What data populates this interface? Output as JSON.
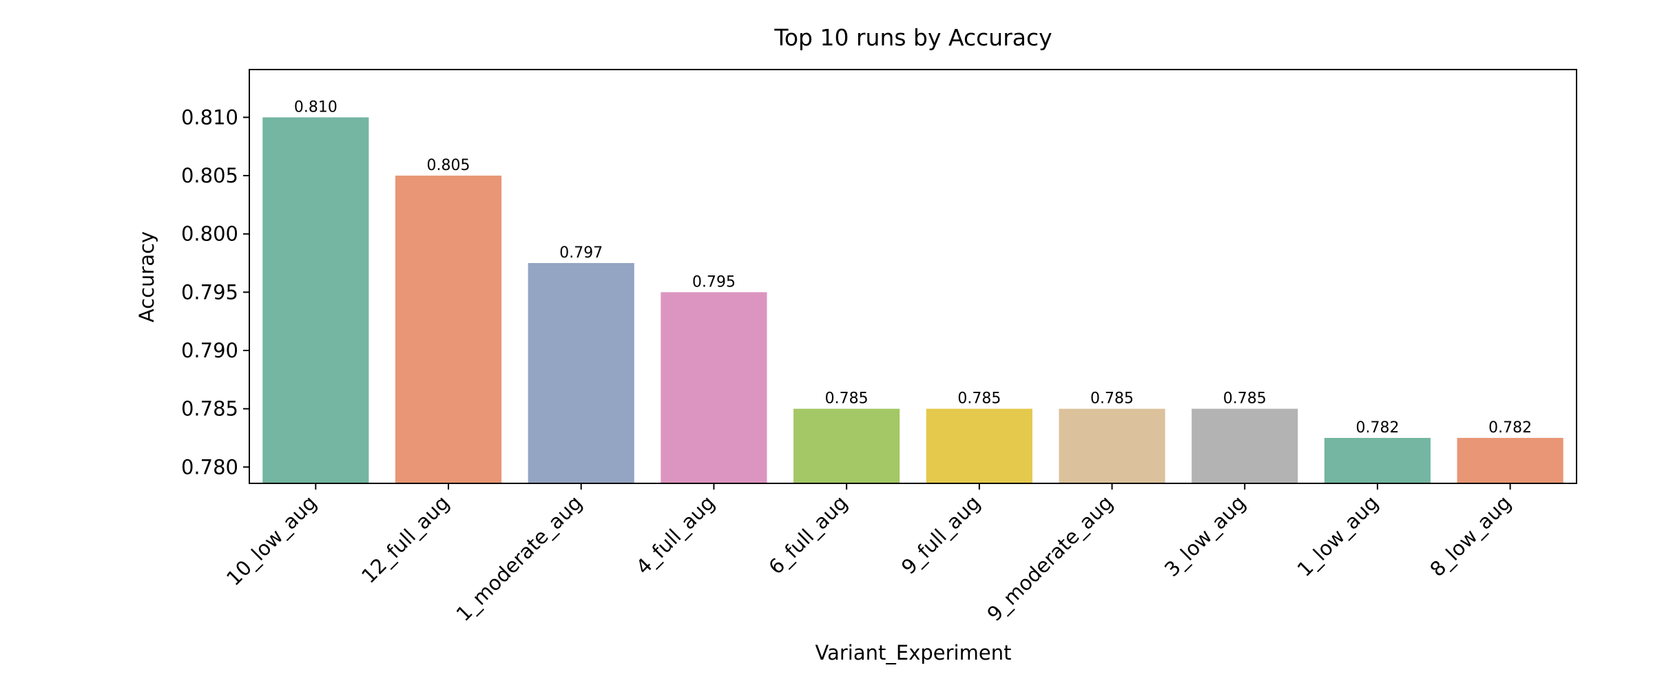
{
  "chart_data": {
    "type": "bar",
    "title": "Top 10 runs by Accuracy",
    "xlabel": "Variant_Experiment",
    "ylabel": "Accuracy",
    "categories": [
      "10_low_aug",
      "12_full_aug",
      "1_moderate_aug",
      "4_full_aug",
      "6_full_aug",
      "9_full_aug",
      "9_moderate_aug",
      "3_low_aug",
      "1_low_aug",
      "8_low_aug"
    ],
    "values": [
      0.81,
      0.805,
      0.7975,
      0.795,
      0.785,
      0.785,
      0.785,
      0.785,
      0.7825,
      0.7825
    ],
    "value_labels": [
      "0.810",
      "0.805",
      "0.797",
      "0.795",
      "0.785",
      "0.785",
      "0.785",
      "0.785",
      "0.782",
      "0.782"
    ],
    "colors": [
      "#74b6a1",
      "#e89675",
      "#94a4c3",
      "#dc95c0",
      "#a3c865",
      "#e4c94d",
      "#dbc29c",
      "#b3b3b3",
      "#74b6a1",
      "#e89675"
    ],
    "ylim": [
      0.7786,
      0.8141
    ],
    "yticks": [
      0.78,
      0.785,
      0.79,
      0.795,
      0.8,
      0.805,
      0.81
    ],
    "ytick_labels": [
      "0.780",
      "0.785",
      "0.790",
      "0.795",
      "0.800",
      "0.805",
      "0.810"
    ],
    "grid": false,
    "legend": "none"
  }
}
